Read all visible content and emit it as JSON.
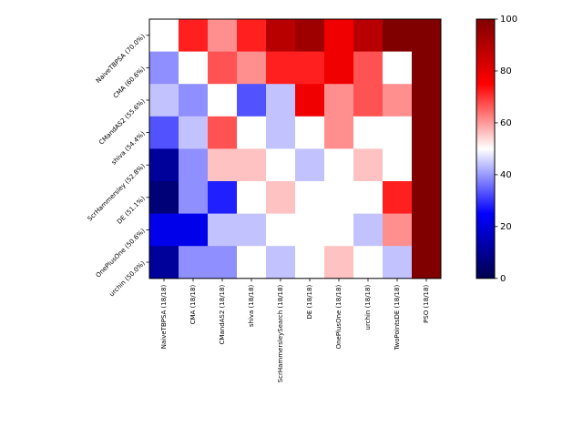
{
  "chart_data": {
    "type": "heatmap",
    "title": "",
    "xlabel": "",
    "ylabel": "",
    "row_labels": [
      "NaiveTBPSA (70.0%)",
      "CMA (60.6%)",
      "CMandAS2 (55.6%)",
      "shiva (54.4%)",
      "ScrHammersley (52.8%)",
      "DE (51.1%)",
      "OnePlusOne (50.6%)",
      "urchin (50.0%)"
    ],
    "col_labels": [
      "NaiveTBPSA (18/18)",
      "CMA (18/18)",
      "CMandAS2 (18/18)",
      "shiva (18/18)",
      "ScrHammersleySearch (18/18)",
      "DE (18/18)",
      "OnePlusOne (18/18)",
      "urchin (18/18)",
      "TwoPointsDE (18/18)",
      "PSO (18/18)"
    ],
    "values": [
      [
        50,
        72,
        61,
        72,
        89,
        94,
        78,
        89,
        100,
        100
      ],
      [
        39,
        50,
        67,
        61,
        72,
        72,
        78,
        67,
        50,
        100
      ],
      [
        44,
        39,
        50,
        33,
        44,
        78,
        61,
        67,
        61,
        100
      ],
      [
        33,
        44,
        67,
        50,
        44,
        50,
        61,
        50,
        50,
        100
      ],
      [
        11,
        39,
        56,
        56,
        50,
        44,
        50,
        56,
        50,
        100
      ],
      [
        6,
        39,
        28,
        50,
        56,
        50,
        50,
        50,
        72,
        100
      ],
      [
        22,
        22,
        44,
        44,
        50,
        50,
        50,
        44,
        61,
        100
      ],
      [
        11,
        39,
        39,
        50,
        44,
        50,
        56,
        50,
        44,
        100
      ]
    ],
    "colorbar": {
      "cmap": "seismic",
      "min": 0,
      "max": 100,
      "ticks": [
        0,
        20,
        40,
        60,
        80,
        100
      ]
    }
  }
}
